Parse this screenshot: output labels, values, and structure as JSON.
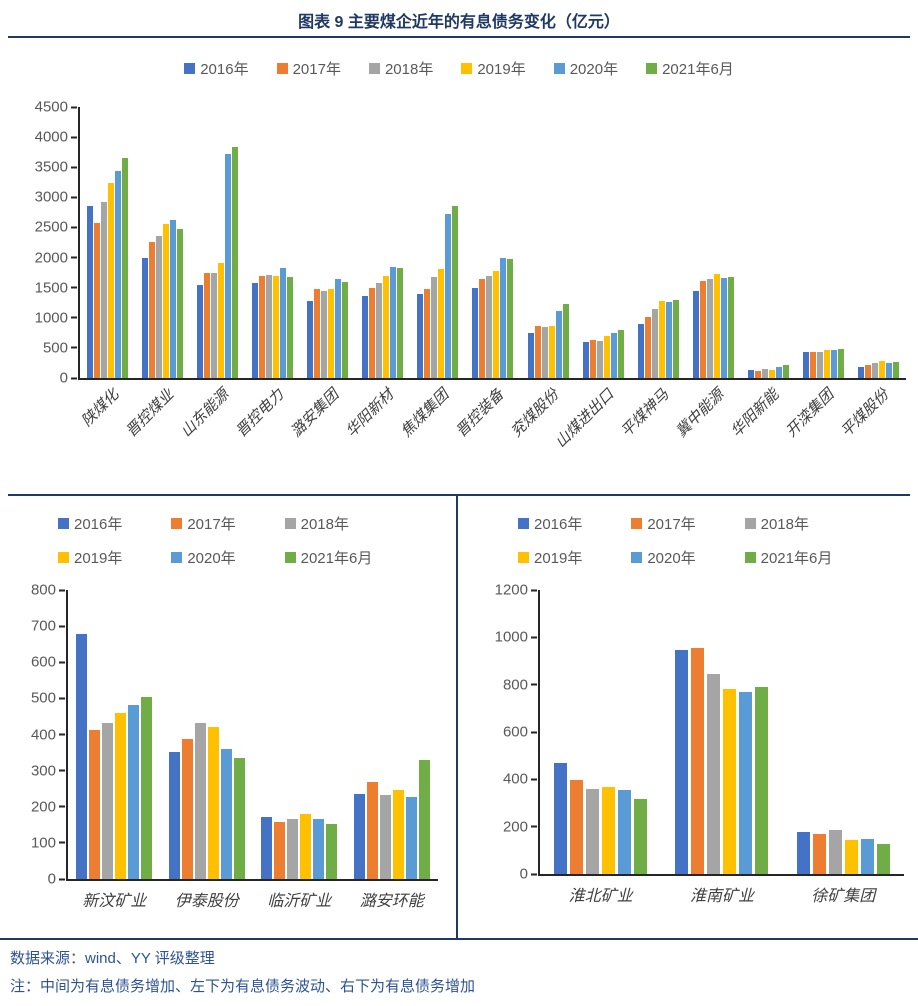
{
  "title": "图表 9 主要煤企近年的有息债务变化（亿元）",
  "footer": {
    "source": "数据来源：wind、YY 评级整理",
    "note": "注：中间为有息债务增加、左下为有息债务波动、右下为有息债务增加"
  },
  "colors": {
    "accent_navy": "#1F3864",
    "axis_line": "#262626",
    "tick_label_gray": "#595959",
    "category_label_gray": "#404040"
  },
  "legend_years": [
    "2016年",
    "2017年",
    "2018年",
    "2019年",
    "2020年",
    "2021年6月"
  ],
  "chart_data": [
    {
      "type": "bar",
      "position": "top",
      "title": "",
      "xlabel": "",
      "ylabel": "",
      "ylim": [
        0,
        4500
      ],
      "ytick_step": 500,
      "grid": false,
      "legend_position": "top",
      "categories": [
        "陕煤化",
        "晋控煤业",
        "山东能源",
        "晋控电力",
        "潞安集团",
        "华阳新材",
        "焦煤集团",
        "晋控装备",
        "兖煤股份",
        "山煤进出口",
        "平煤神马",
        "冀中能源",
        "华阳新能",
        "开滦集团",
        "平煤股份"
      ],
      "series": [
        {
          "name": "2016年",
          "color": "#4472C4",
          "values": [
            2850,
            2000,
            1540,
            1570,
            1280,
            1360,
            1400,
            1500,
            750,
            600,
            890,
            1440,
            130,
            430,
            180
          ]
        },
        {
          "name": "2017年",
          "color": "#ED7D31",
          "values": [
            2570,
            2260,
            1750,
            1700,
            1470,
            1500,
            1470,
            1650,
            860,
            630,
            1020,
            1610,
            120,
            430,
            210
          ]
        },
        {
          "name": "2018年",
          "color": "#A5A5A5",
          "values": [
            2930,
            2360,
            1740,
            1710,
            1440,
            1580,
            1670,
            1700,
            840,
            620,
            1150,
            1650,
            150,
            435,
            245
          ]
        },
        {
          "name": "2019年",
          "color": "#FFC000",
          "values": [
            3230,
            2550,
            1910,
            1690,
            1480,
            1690,
            1810,
            1770,
            860,
            700,
            1280,
            1720,
            140,
            465,
            275
          ]
        },
        {
          "name": "2020年",
          "color": "#5B9BD5",
          "values": [
            3440,
            2630,
            3720,
            1820,
            1650,
            1840,
            2730,
            1990,
            1110,
            740,
            1260,
            1660,
            190,
            460,
            255
          ]
        },
        {
          "name": "2021年6月",
          "color": "#70AD47",
          "values": [
            3650,
            2480,
            3830,
            1680,
            1590,
            1820,
            2850,
            1970,
            1230,
            800,
            1300,
            1670,
            220,
            480,
            260
          ]
        }
      ]
    },
    {
      "type": "bar",
      "position": "bottom-left",
      "title": "",
      "xlabel": "",
      "ylabel": "",
      "ylim": [
        0,
        800
      ],
      "ytick_step": 100,
      "grid": false,
      "legend_position": "top",
      "categories": [
        "新汶矿业",
        "伊泰股份",
        "临沂矿业",
        "潞安环能"
      ],
      "series": [
        {
          "name": "2016年",
          "color": "#4472C4",
          "values": [
            678,
            352,
            172,
            236
          ]
        },
        {
          "name": "2017年",
          "color": "#ED7D31",
          "values": [
            413,
            388,
            158,
            268
          ]
        },
        {
          "name": "2018年",
          "color": "#A5A5A5",
          "values": [
            433,
            433,
            166,
            233
          ]
        },
        {
          "name": "2019年",
          "color": "#FFC000",
          "values": [
            460,
            422,
            179,
            246
          ]
        },
        {
          "name": "2020年",
          "color": "#5B9BD5",
          "values": [
            482,
            360,
            165,
            227
          ]
        },
        {
          "name": "2021年6月",
          "color": "#70AD47",
          "values": [
            504,
            335,
            152,
            330
          ]
        }
      ]
    },
    {
      "type": "bar",
      "position": "bottom-right",
      "title": "",
      "xlabel": "",
      "ylabel": "",
      "ylim": [
        0,
        1200
      ],
      "ytick_step": 200,
      "grid": false,
      "legend_position": "top",
      "categories": [
        "淮北矿业",
        "淮南矿业",
        "徐矿集团"
      ],
      "series": [
        {
          "name": "2016年",
          "color": "#4472C4",
          "values": [
            470,
            945,
            178
          ]
        },
        {
          "name": "2017年",
          "color": "#ED7D31",
          "values": [
            397,
            953,
            170
          ]
        },
        {
          "name": "2018年",
          "color": "#A5A5A5",
          "values": [
            360,
            845,
            185
          ]
        },
        {
          "name": "2019年",
          "color": "#FFC000",
          "values": [
            368,
            782,
            143
          ]
        },
        {
          "name": "2020年",
          "color": "#5B9BD5",
          "values": [
            355,
            768,
            146
          ]
        },
        {
          "name": "2021年6月",
          "color": "#70AD47",
          "values": [
            317,
            790,
            127
          ]
        }
      ]
    }
  ]
}
